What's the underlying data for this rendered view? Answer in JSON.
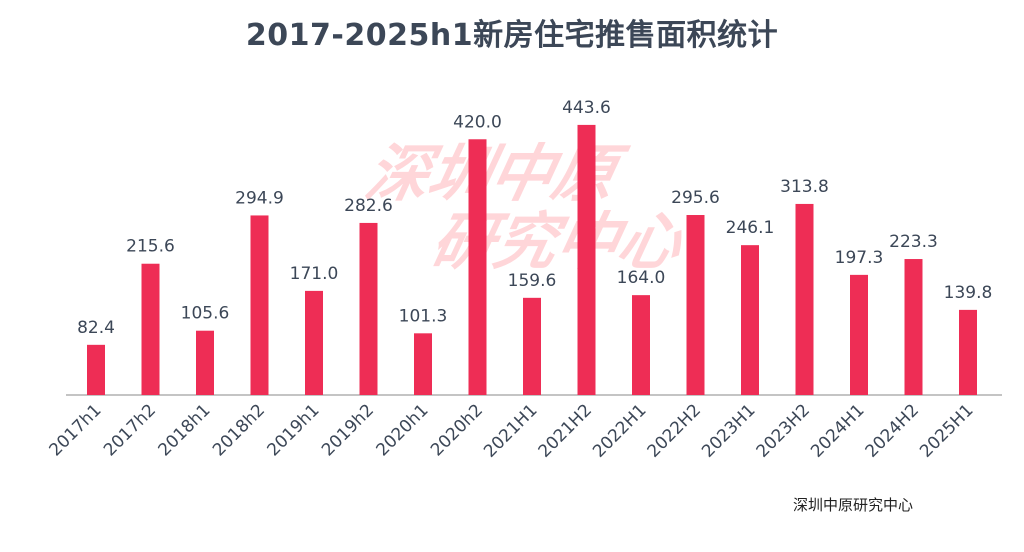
{
  "title": "2017-2025h1新房住宅推售面积统计",
  "source": "深圳中原研究中心",
  "watermark": {
    "line1": "深圳中原",
    "line2": "研究中心"
  },
  "colors": {
    "bar": "#ee2d55",
    "title": "#3c4757",
    "labels": "#3c4757",
    "axis": "#888888"
  },
  "chart_data": {
    "type": "bar",
    "title": "2017-2025h1新房住宅推售面积统计",
    "xlabel": "",
    "ylabel": "",
    "categories": [
      "2017h1",
      "2017h2",
      "2018h1",
      "2018h2",
      "2019h1",
      "2019h2",
      "2020h1",
      "2020h2",
      "2021H1",
      "2021H2",
      "2022H1",
      "2022H2",
      "2023H1",
      "2023H2",
      "2024H1",
      "2024H2",
      "2025H1"
    ],
    "values": [
      82.4,
      215.6,
      105.6,
      294.9,
      171.0,
      282.6,
      101.3,
      420.0,
      159.6,
      443.6,
      164.0,
      295.6,
      246.1,
      313.8,
      197.3,
      223.3,
      139.8
    ],
    "data_labels": [
      "82.4",
      "215.6",
      "105.6",
      "294.9",
      "171.0",
      "282.6",
      "101.3",
      "420.0",
      "159.6",
      "443.6",
      "164.0",
      "295.6",
      "246.1",
      "313.8",
      "197.3",
      "223.3",
      "139.8"
    ],
    "ylim": [
      0,
      460
    ],
    "grid": false,
    "legend": "none"
  }
}
